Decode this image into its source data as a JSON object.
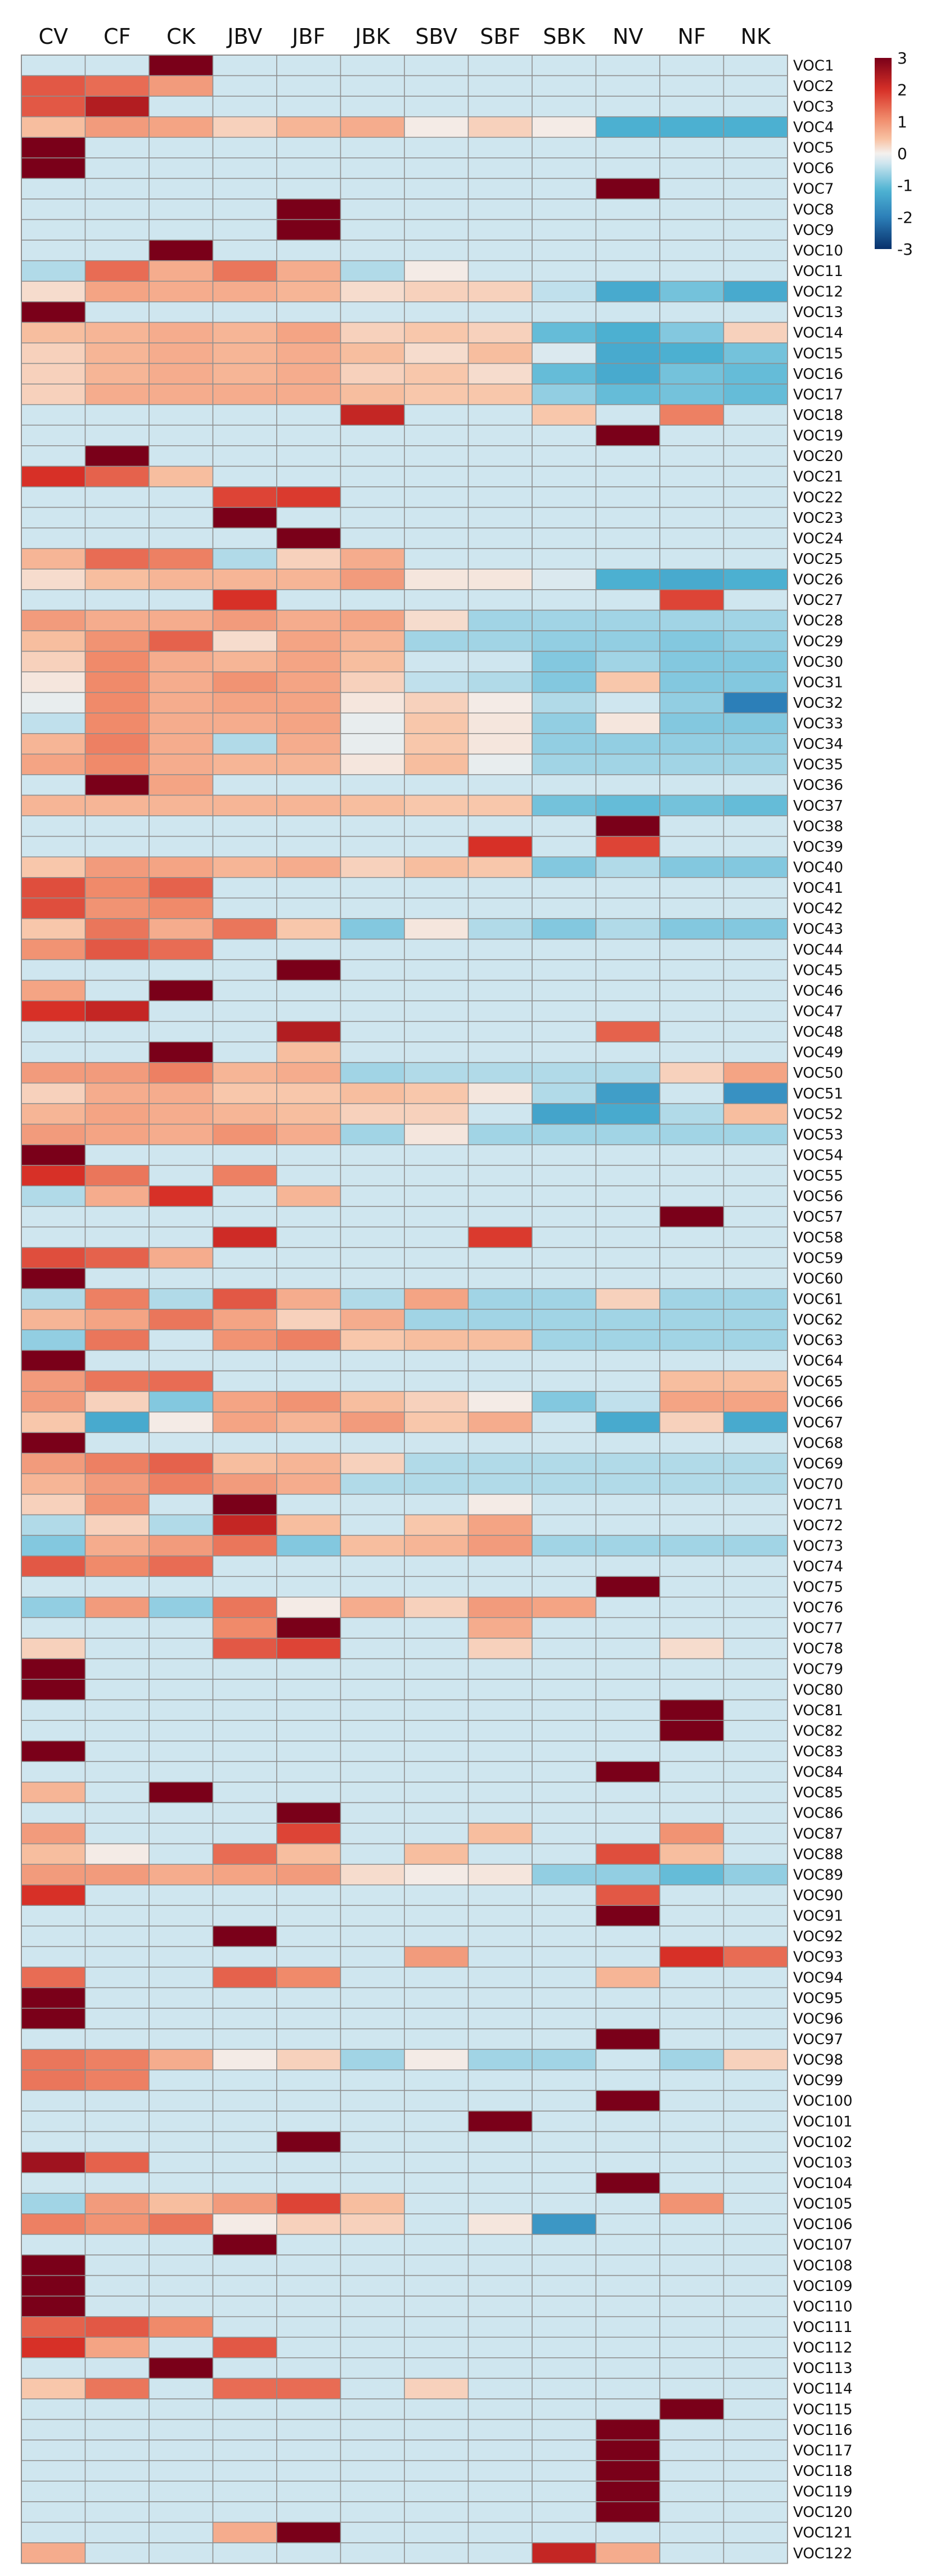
{
  "chart_data": {
    "type": "heatmap",
    "title": "",
    "columns": [
      "CV",
      "CF",
      "CK",
      "JBV",
      "JBF",
      "JBK",
      "SBV",
      "SBF",
      "SBK",
      "NV",
      "NF",
      "NK"
    ],
    "rows": [
      "VOC1",
      "VOC2",
      "VOC3",
      "VOC4",
      "VOC5",
      "VOC6",
      "VOC7",
      "VOC8",
      "VOC9",
      "VOC10",
      "VOC11",
      "VOC12",
      "VOC13",
      "VOC14",
      "VOC15",
      "VOC16",
      "VOC17",
      "VOC18",
      "VOC19",
      "VOC20",
      "VOC21",
      "VOC22",
      "VOC23",
      "VOC24",
      "VOC25",
      "VOC26",
      "VOC27",
      "VOC28",
      "VOC29",
      "VOC30",
      "VOC31",
      "VOC32",
      "VOC33",
      "VOC34",
      "VOC35",
      "VOC36",
      "VOC37",
      "VOC38",
      "VOC39",
      "VOC40",
      "VOC41",
      "VOC42",
      "VOC43",
      "VOC44",
      "VOC45",
      "VOC46",
      "VOC47",
      "VOC48",
      "VOC49",
      "VOC50",
      "VOC51",
      "VOC52",
      "VOC53",
      "VOC54",
      "VOC55",
      "VOC56",
      "VOC57",
      "VOC58",
      "VOC59",
      "VOC60",
      "VOC61",
      "VOC62",
      "VOC63",
      "VOC64",
      "VOC65",
      "VOC66",
      "VOC67",
      "VOC68",
      "VOC69",
      "VOC70",
      "VOC71",
      "VOC72",
      "VOC73",
      "VOC74",
      "VOC75",
      "VOC76",
      "VOC77",
      "VOC78",
      "VOC79",
      "VOC80",
      "VOC81",
      "VOC82",
      "VOC83",
      "VOC84",
      "VOC85",
      "VOC86",
      "VOC87",
      "VOC88",
      "VOC89",
      "VOC90",
      "VOC91",
      "VOC92",
      "VOC93",
      "VOC94",
      "VOC95",
      "VOC96",
      "VOC97",
      "VOC98",
      "VOC99",
      "VOC100",
      "VOC101",
      "VOC102",
      "VOC103",
      "VOC104",
      "VOC105",
      "VOC106",
      "VOC107",
      "VOC108",
      "VOC109",
      "VOC110",
      "VOC111",
      "VOC112",
      "VOC113",
      "VOC114",
      "VOC115",
      "VOC116",
      "VOC117",
      "VOC118",
      "VOC119",
      "VOC120",
      "VOC121",
      "VOC122"
    ],
    "default_value": -0.3,
    "overrides": {
      "VOC1": {
        "CK": 3
      },
      "VOC2": {
        "CV": 1.6,
        "CF": 1.4,
        "CK": 0.9
      },
      "VOC3": {
        "CV": 1.6,
        "CF": 2.4
      },
      "VOC4": {
        "CV": 0.5,
        "CF": 0.9,
        "CK": 0.8,
        "JBV": 0.3,
        "JBF": 0.6,
        "JBK": 0.7,
        "SBV": 0.05,
        "SBF": 0.3,
        "SBK": 0.05,
        "NV": -1.2,
        "NF": -1.2,
        "NK": -1.2
      },
      "VOC5": {
        "CV": 3
      },
      "VOC6": {
        "CV": 3
      },
      "VOC7": {
        "NV": 3
      },
      "VOC8": {
        "JBF": 3
      },
      "VOC9": {
        "JBF": 3
      },
      "VOC10": {
        "CK": 3
      },
      "VOC11": {
        "CV": -0.5,
        "CF": 1.4,
        "CK": 0.7,
        "JBV": 1.3,
        "JBF": 0.7,
        "JBK": -0.5,
        "SBV": 0.05
      },
      "VOC12": {
        "CV": 0.2,
        "CF": 0.8,
        "CK": 0.7,
        "JBV": 0.7,
        "JBF": 0.6,
        "JBK": 0.2,
        "SBV": 0.3,
        "SBF": 0.3,
        "SBK": -0.4,
        "NV": -1.3,
        "NF": -0.9,
        "NK": -1.3
      },
      "VOC13": {
        "CV": 3
      },
      "VOC14": {
        "CV": 0.5,
        "CF": 0.6,
        "CK": 0.7,
        "JBV": 0.6,
        "JBF": 0.8,
        "JBK": 0.3,
        "SBV": 0.4,
        "SBF": 0.3,
        "SBK": -1.0,
        "NV": -1.2,
        "NF": -0.8,
        "NK": 0.3
      },
      "VOC15": {
        "CV": 0.3,
        "CF": 0.6,
        "CK": 0.7,
        "JBV": 0.6,
        "JBF": 0.7,
        "JBK": 0.5,
        "SBV": 0.2,
        "SBF": 0.5,
        "SBK": -0.2,
        "NV": -1.3,
        "NF": -1.2,
        "NK": -0.9
      },
      "VOC16": {
        "CV": 0.3,
        "CF": 0.6,
        "CK": 0.7,
        "JBV": 0.6,
        "JBF": 0.7,
        "JBK": 0.3,
        "SBV": 0.4,
        "SBF": 0.2,
        "SBK": -1.0,
        "NV": -1.3,
        "NF": -0.9,
        "NK": -1.0
      },
      "VOC17": {
        "CV": 0.3,
        "CF": 0.7,
        "CK": 0.7,
        "JBV": 0.7,
        "JBF": 0.7,
        "JBK": 0.5,
        "SBV": 0.4,
        "SBF": 0.4,
        "SBK": -0.7,
        "NV": -1.0,
        "NF": -0.9,
        "NK": -1.0
      },
      "VOC18": {
        "JBK": 2.2,
        "SBK": 0.4,
        "NF": 1.2
      },
      "VOC19": {
        "NV": 3
      },
      "VOC20": {
        "CF": 3
      },
      "VOC21": {
        "CV": 2.0,
        "CF": 1.5,
        "CK": 0.5
      },
      "VOC22": {
        "JBV": 1.8,
        "JBF": 1.9
      },
      "VOC23": {
        "JBV": 3
      },
      "VOC24": {
        "JBF": 3
      },
      "VOC25": {
        "CV": 0.6,
        "CF": 1.4,
        "CK": 1.2,
        "JBV": -0.5,
        "JBF": 0.3,
        "JBK": 0.7
      },
      "VOC26": {
        "CV": 0.2,
        "CF": 0.5,
        "CK": 0.6,
        "JBV": 0.6,
        "JBF": 0.6,
        "JBK": 0.9,
        "SBV": 0.1,
        "SBF": 0.1,
        "SBK": -0.2,
        "NV": -1.2,
        "NF": -1.3,
        "NK": -1.2
      },
      "VOC27": {
        "JBV": 2.0,
        "NF": 1.8
      },
      "VOC28": {
        "CV": 0.9,
        "CF": 0.7,
        "CK": 0.7,
        "JBV": 0.9,
        "JBF": 0.7,
        "JBK": 0.8,
        "SBV": 0.2,
        "SBF": -0.6,
        "SBK": -0.6,
        "NV": -0.6,
        "NF": -0.6,
        "NK": -0.6
      },
      "VOC29": {
        "CV": 0.5,
        "CF": 1.0,
        "CK": 1.5,
        "JBV": 0.2,
        "JBF": 0.8,
        "JBK": 0.6,
        "SBV": -0.6,
        "SBF": -0.6,
        "SBK": -0.7,
        "NV": -0.7,
        "NF": -0.8,
        "NK": -0.7
      },
      "VOC30": {
        "CV": 0.3,
        "CF": 1.1,
        "CK": 0.7,
        "JBV": 0.6,
        "JBF": 0.8,
        "JBK": 0.5,
        "SBV": -0.3,
        "SBF": -0.3,
        "SBK": -0.8,
        "NV": -0.6,
        "NF": -0.8,
        "NK": -0.8
      },
      "VOC31": {
        "CV": 0.1,
        "CF": 1.1,
        "CK": 0.7,
        "JBV": 1.0,
        "JBF": 0.8,
        "JBK": 0.3,
        "SBV": -0.4,
        "SBF": -0.5,
        "SBK": -0.8,
        "NV": 0.4,
        "NF": -0.8,
        "NK": -0.8
      },
      "VOC32": {
        "CV": -0.1,
        "CF": 1.1,
        "CK": 0.7,
        "JBV": 0.8,
        "JBF": 0.8,
        "JBK": 0.1,
        "SBV": 0.3,
        "SBF": 0.05,
        "SBK": -0.5,
        "NV": -0.3,
        "NF": -0.7,
        "NK": -2.0
      },
      "VOC33": {
        "CV": -0.4,
        "CF": 1.1,
        "CK": 0.7,
        "JBV": 0.7,
        "JBF": 0.8,
        "JBK": -0.1,
        "SBV": 0.4,
        "SBF": 0.1,
        "SBK": -0.7,
        "NV": 0.1,
        "NF": -0.8,
        "NK": -0.8
      },
      "VOC34": {
        "CV": 0.6,
        "CF": 1.2,
        "CK": 0.7,
        "JBV": -0.5,
        "JBF": 0.7,
        "JBK": -0.1,
        "SBV": 0.4,
        "SBF": 0.1,
        "SBK": -0.7,
        "NV": -0.7,
        "NF": -0.7,
        "NK": -0.7
      },
      "VOC35": {
        "CV": 0.8,
        "CF": 1.1,
        "CK": 0.7,
        "JBV": 0.6,
        "JBF": 0.6,
        "JBK": 0.1,
        "SBV": 0.5,
        "SBF": -0.1,
        "SBK": -0.6,
        "NV": -0.6,
        "NF": -0.6,
        "NK": -0.6
      },
      "VOC36": {
        "CF": 3,
        "CK": 0.8
      },
      "VOC37": {
        "CV": 0.6,
        "CF": 0.6,
        "CK": 0.6,
        "JBV": 0.6,
        "JBF": 0.6,
        "JBK": 0.5,
        "SBV": 0.4,
        "SBF": 0.4,
        "SBK": -0.9,
        "NV": -1.0,
        "NF": -0.9,
        "NK": -1.0
      },
      "VOC38": {
        "NV": 3
      },
      "VOC39": {
        "SBF": 2.0,
        "NV": 1.8
      },
      "VOC40": {
        "CV": 0.4,
        "CF": 0.9,
        "CK": 0.8,
        "JBV": 0.6,
        "JBF": 0.7,
        "JBK": 0.3,
        "SBV": 0.5,
        "SBF": 0.4,
        "SBK": -0.8,
        "NV": -0.5,
        "NF": -0.8,
        "NK": -0.8
      },
      "VOC41": {
        "CV": 1.7,
        "CF": 1.1,
        "CK": 1.5
      },
      "VOC42": {
        "CV": 1.7,
        "CF": 1.0,
        "CK": 1.1
      },
      "VOC43": {
        "CV": 0.4,
        "CF": 1.3,
        "CK": 0.7,
        "JBV": 1.3,
        "JBF": 0.4,
        "JBK": -0.8,
        "SBV": 0.1,
        "SBF": -0.5,
        "SBK": -0.8,
        "NV": -0.5,
        "NF": -0.8,
        "NK": -0.8
      },
      "VOC44": {
        "CV": 1.0,
        "CF": 1.6,
        "CK": 1.4
      },
      "VOC45": {
        "JBF": 3
      },
      "VOC46": {
        "CV": 0.8,
        "CK": 3
      },
      "VOC47": {
        "CV": 2.0,
        "CF": 2.2
      },
      "VOC48": {
        "JBF": 2.4,
        "NV": 1.5
      },
      "VOC49": {
        "CK": 3,
        "JBF": 0.5
      },
      "VOC50": {
        "CV": 0.9,
        "CF": 0.9,
        "CK": 1.2,
        "JBV": 0.6,
        "JBF": 0.7,
        "JBK": -0.6,
        "SBV": -0.5,
        "SBF": -0.5,
        "SBK": -0.5,
        "NV": -0.5,
        "NF": 0.3,
        "NK": 0.8
      },
      "VOC51": {
        "CV": 0.3,
        "CF": 0.7,
        "CK": 0.7,
        "JBV": 0.4,
        "JBF": 0.4,
        "JBK": 0.5,
        "SBV": 0.4,
        "SBF": 0.1,
        "SBK": -0.5,
        "NV": -1.5,
        "NF": -0.3,
        "NK": -1.7
      },
      "VOC52": {
        "CV": 0.6,
        "CF": 0.8,
        "CK": 0.7,
        "JBV": 0.6,
        "JBF": 0.5,
        "JBK": 0.3,
        "SBV": 0.3,
        "SBF": -0.3,
        "SBK": -1.4,
        "NV": -1.3,
        "NF": -0.5,
        "NK": 0.5
      },
      "VOC53": {
        "CV": 0.9,
        "CF": 0.8,
        "CK": 0.7,
        "JBV": 1.0,
        "JBF": 0.7,
        "JBK": -0.6,
        "SBV": 0.1,
        "SBF": -0.6,
        "SBK": -0.6,
        "NV": -0.6,
        "NF": -0.6,
        "NK": -0.6
      },
      "VOC54": {
        "CV": 3
      },
      "VOC55": {
        "CV": 2.0,
        "CF": 1.3,
        "JBV": 1.2
      },
      "VOC56": {
        "CV": -0.5,
        "CF": 0.7,
        "CK": 2.0,
        "JBF": 0.6
      },
      "VOC57": {
        "NF": 3
      },
      "VOC58": {
        "JBV": 2.1,
        "SBF": 1.9
      },
      "VOC59": {
        "CV": 1.7,
        "CF": 1.5,
        "CK": 0.7
      },
      "VOC60": {
        "CV": 3
      },
      "VOC61": {
        "CV": -0.5,
        "CF": 1.2,
        "CK": -0.5,
        "JBV": 1.6,
        "JBF": 0.7,
        "JBK": -0.5,
        "SBV": 0.8,
        "SBF": -0.6,
        "SBK": -0.6,
        "NV": 0.3,
        "NF": -0.6,
        "NK": -0.6
      },
      "VOC62": {
        "CV": 0.6,
        "CF": 0.8,
        "CK": 1.3,
        "JBV": 0.8,
        "JBF": 0.3,
        "JBK": 0.7,
        "SBV": -0.6,
        "SBF": -0.6,
        "SBK": -0.6,
        "NV": -0.6,
        "NF": -0.6,
        "NK": -0.6
      },
      "VOC63": {
        "CV": -0.7,
        "CF": 1.3,
        "CK": -0.3,
        "JBV": 1.0,
        "JBF": 1.2,
        "JBK": 0.4,
        "SBV": 0.5,
        "SBF": 0.5,
        "SBK": -0.6,
        "NV": -0.6,
        "NF": -0.6,
        "NK": -0.6
      },
      "VOC64": {
        "CV": 3
      },
      "VOC65": {
        "CV": 0.9,
        "CF": 1.3,
        "CK": 1.4,
        "NF": 0.5,
        "NK": 0.5
      },
      "VOC66": {
        "CV": 0.9,
        "CF": 0.3,
        "CK": -0.8,
        "JBV": 0.8,
        "JBF": 1.0,
        "JBK": 0.5,
        "SBV": 0.3,
        "SBF": 0.05,
        "SBK": -0.8,
        "NV": -0.4,
        "NF": 0.8,
        "NK": 0.8
      },
      "VOC67": {
        "CV": 0.4,
        "CF": -1.3,
        "CK": 0.05,
        "JBV": 0.8,
        "JBF": 0.6,
        "JBK": 0.9,
        "SBV": 0.4,
        "SBF": 0.7,
        "SBK": -0.3,
        "NV": -1.3,
        "NF": 0.3,
        "NK": -1.3
      },
      "VOC68": {
        "CV": 3
      },
      "VOC69": {
        "CV": 0.9,
        "CF": 1.2,
        "CK": 1.5,
        "JBV": 0.5,
        "JBF": 0.6,
        "JBK": 0.3,
        "SBV": -0.5,
        "SBF": -0.5,
        "SBK": -0.5,
        "NV": -0.5,
        "NF": -0.5,
        "NK": -0.5
      },
      "VOC70": {
        "CV": 0.6,
        "CF": 0.9,
        "CK": 1.2,
        "JBV": 0.9,
        "JBF": 0.7,
        "JBK": -0.5,
        "SBV": -0.5,
        "SBF": -0.5,
        "SBK": -0.5,
        "NV": -0.5,
        "NF": -0.5,
        "NK": -0.5
      },
      "VOC71": {
        "CV": 0.3,
        "CF": 1.0,
        "JBV": 3,
        "SBF": 0.05
      },
      "VOC72": {
        "CV": -0.5,
        "CF": 0.3,
        "CK": -0.5,
        "JBV": 2.2,
        "JBF": 0.5,
        "SBV": 0.4,
        "SBF": 0.8,
        "SBK": -0.3
      },
      "VOC73": {
        "CV": -0.8,
        "CF": 0.7,
        "CK": 0.9,
        "JBV": 1.3,
        "JBF": -0.8,
        "JBK": 0.5,
        "SBV": 0.6,
        "SBF": 0.9,
        "SBK": -0.6,
        "NV": -0.6,
        "NF": -0.6,
        "NK": -0.6
      },
      "VOC74": {
        "CV": 1.6,
        "CF": 1.1,
        "CK": 1.4
      },
      "VOC75": {
        "NV": 3
      },
      "VOC76": {
        "CV": -0.7,
        "CF": 0.9,
        "CK": -0.7,
        "JBV": 1.3,
        "JBF": 0.05,
        "JBK": 0.7,
        "SBV": 0.3,
        "SBF": 0.9,
        "SBK": 0.8
      },
      "VOC77": {
        "JBV": 1.1,
        "JBF": 3,
        "SBF": 0.7
      },
      "VOC78": {
        "CV": 0.3,
        "JBV": 1.6,
        "JBF": 1.8,
        "SBF": 0.3,
        "NF": 0.2
      },
      "VOC79": {
        "CV": 3
      },
      "VOC80": {
        "CV": 3
      },
      "VOC81": {
        "NF": 3
      },
      "VOC82": {
        "NF": 3
      },
      "VOC83": {
        "CV": 3
      },
      "VOC84": {
        "NV": 3
      },
      "VOC85": {
        "CV": 0.6,
        "CK": 3
      },
      "VOC86": {
        "JBF": 3
      },
      "VOC87": {
        "CV": 0.9,
        "JBF": 1.8,
        "SBF": 0.5,
        "NF": 1.0
      },
      "VOC88": {
        "CV": 0.5,
        "CF": 0.05,
        "JBV": 1.4,
        "JBF": 0.5,
        "SBV": 0.5,
        "NV": 1.7,
        "NF": 0.5
      },
      "VOC89": {
        "CV": 0.9,
        "CF": 0.9,
        "CK": 0.7,
        "JBV": 0.8,
        "JBF": 0.9,
        "JBK": 0.2,
        "SBV": 0.05,
        "SBF": 0.1,
        "SBK": -0.7,
        "NV": -0.7,
        "NF": -1.0,
        "NK": -0.7
      },
      "VOC90": {
        "CV": 2.0,
        "NV": 1.6
      },
      "VOC91": {
        "NV": 3
      },
      "VOC92": {
        "JBV": 3
      },
      "VOC93": {
        "SBV": 0.9,
        "NF": 2.0,
        "NK": 1.4
      },
      "VOC94": {
        "CV": 1.4,
        "JBV": 1.5,
        "JBF": 1.1,
        "NV": 0.6
      },
      "VOC95": {
        "CV": 3
      },
      "VOC96": {
        "CV": 3
      },
      "VOC97": {
        "NV": 3
      },
      "VOC98": {
        "CV": 1.3,
        "CF": 1.2,
        "CK": 0.7,
        "JBV": 0.05,
        "JBF": 0.3,
        "JBK": -0.6,
        "SBV": 0.05,
        "SBF": -0.6,
        "SBK": -0.6,
        "NV": -0.3,
        "NF": -0.6,
        "NK": 0.3
      },
      "VOC99": {
        "CV": 1.3,
        "CF": 1.2
      },
      "VOC100": {
        "NV": 3
      },
      "VOC101": {
        "SBF": 3
      },
      "VOC102": {
        "JBF": 3
      },
      "VOC103": {
        "CV": 2.6,
        "CF": 1.5
      },
      "VOC104": {
        "NV": 3
      },
      "VOC105": {
        "CV": -0.6,
        "CF": 0.9,
        "CK": 0.5,
        "JBV": 0.9,
        "JBF": 1.8,
        "JBK": 0.5,
        "NF": 1.0
      },
      "VOC106": {
        "CV": 1.2,
        "CF": 1.0,
        "CK": 1.3,
        "JBV": 0.05,
        "JBF": 0.3,
        "JBK": 0.3,
        "SBF": 0.1,
        "SBK": -1.6
      },
      "VOC107": {
        "JBV": 3
      },
      "VOC108": {
        "CV": 3
      },
      "VOC109": {
        "CV": 3
      },
      "VOC110": {
        "CV": 3
      },
      "VOC111": {
        "CV": 1.5,
        "CF": 1.6,
        "CK": 1.1
      },
      "VOC112": {
        "CV": 2.0,
        "CF": 0.8,
        "JBV": 1.6
      },
      "VOC113": {
        "CK": 3
      },
      "VOC114": {
        "CV": 0.4,
        "CF": 1.3,
        "JBV": 1.4,
        "JBF": 1.4,
        "SBV": 0.3
      },
      "VOC115": {
        "NF": 3
      },
      "VOC116": {
        "NV": 3
      },
      "VOC117": {
        "NV": 3
      },
      "VOC118": {
        "NV": 3
      },
      "VOC119": {
        "NV": 3
      },
      "VOC120": {
        "NV": 3
      },
      "VOC121": {
        "JBV": 0.7,
        "JBF": 3
      },
      "VOC122": {
        "CV": 0.7,
        "SBK": 2.2,
        "NV": 0.7
      },
      "VOC": {}
    },
    "colorbar": {
      "min": -3,
      "max": 3,
      "ticks": [
        "3",
        "2",
        "1",
        "0",
        "-1",
        "-2",
        "-3"
      ],
      "colors": [
        "#08306b",
        "#2c7fb8",
        "#4eb3d3",
        "#cfe6ef",
        "#f4f0ee",
        "#f8c2a3",
        "#f08a6a",
        "#d73027",
        "#7a0019"
      ]
    }
  }
}
